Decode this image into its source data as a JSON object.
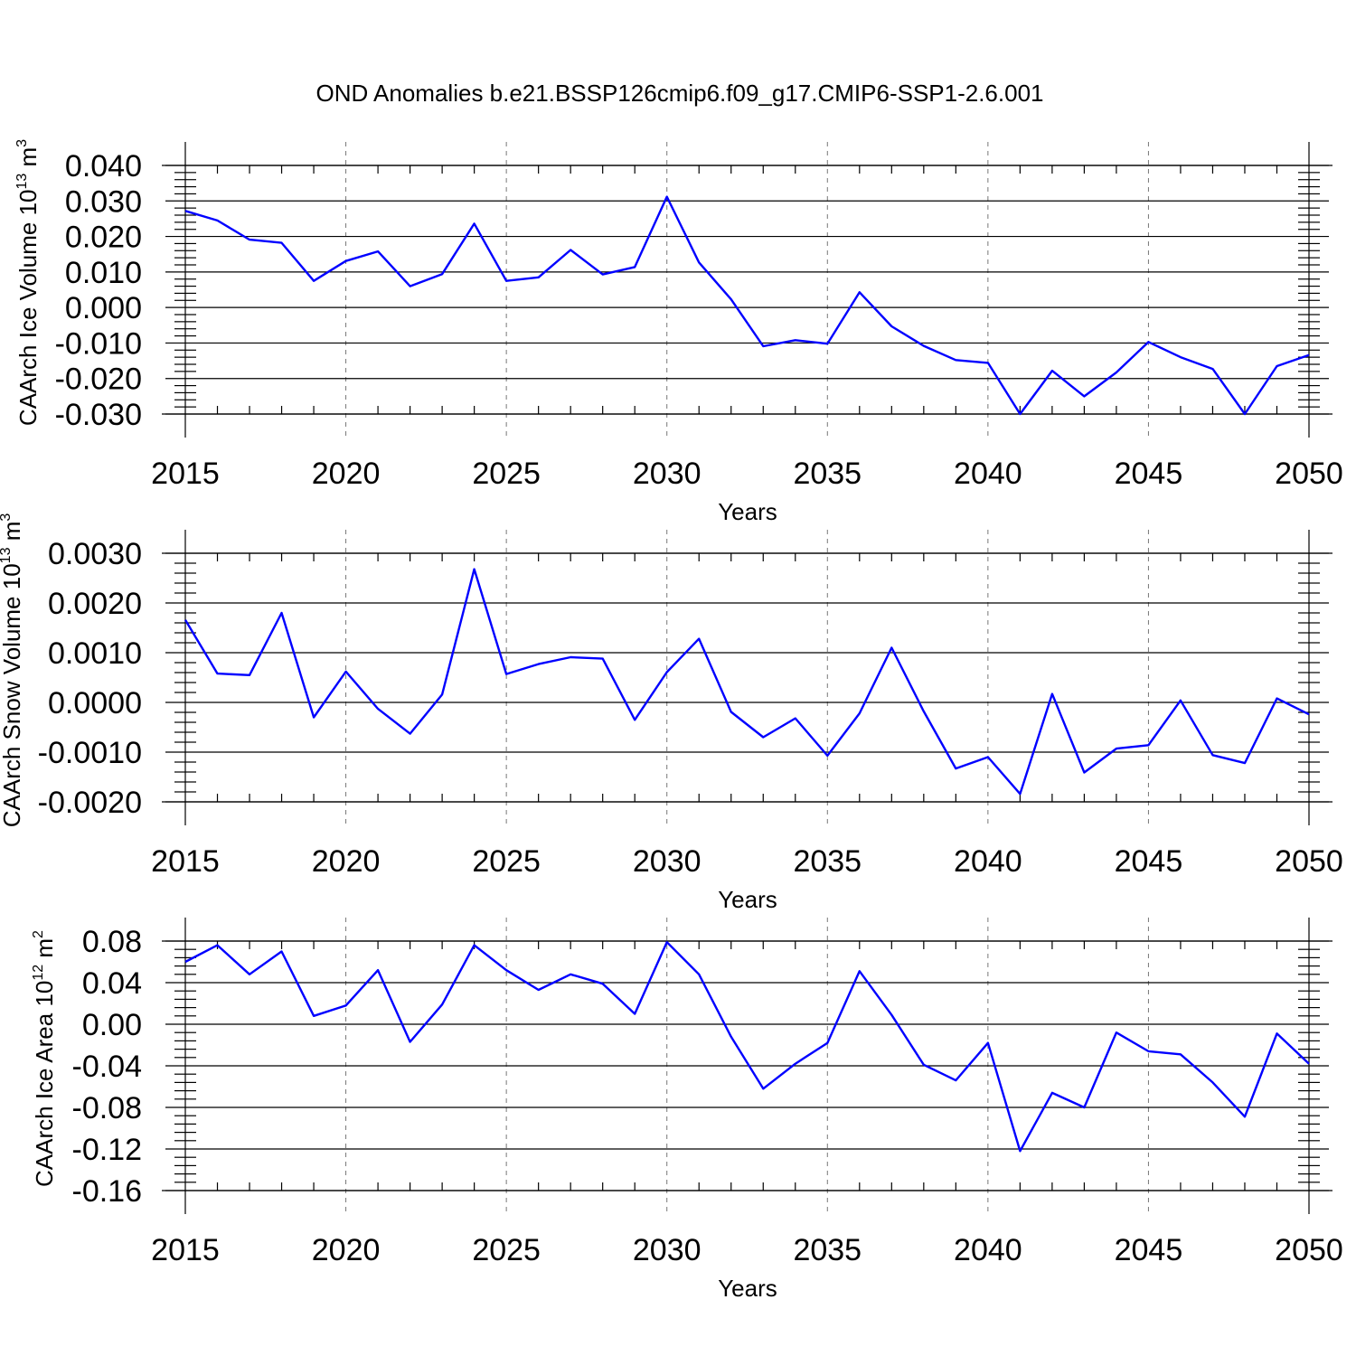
{
  "title": "OND Anomalies b.e21.BSSP126cmip6.f09_g17.CMIP6-SSP1-2.6.001",
  "line_color": "#0000ff",
  "chart_data": [
    {
      "type": "line",
      "ylabel": {
        "text": "CAArch Ice Volume 10",
        "exp": "13",
        "unit": " m",
        "unit_exp": "3"
      },
      "xlabel": "Years",
      "xlim": [
        2015,
        2050
      ],
      "ylim": [
        -0.03,
        0.04
      ],
      "x_ticks": [
        2015,
        2020,
        2025,
        2030,
        2035,
        2040,
        2045,
        2050
      ],
      "x_tick_labels": [
        "2015",
        "2020",
        "2025",
        "2030",
        "2035",
        "2040",
        "2045",
        "2050"
      ],
      "y_ticks": [
        -0.03,
        -0.02,
        -0.01,
        0.0,
        0.01,
        0.02,
        0.03,
        0.04
      ],
      "y_tick_labels": [
        "-0.030",
        "-0.020",
        "-0.010",
        "0.000",
        "0.010",
        "0.020",
        "0.030",
        "0.040"
      ],
      "grid": "vertical dashed at labeled years",
      "x": [
        2015,
        2016,
        2017,
        2018,
        2019,
        2020,
        2021,
        2022,
        2023,
        2024,
        2025,
        2026,
        2027,
        2028,
        2029,
        2030,
        2031,
        2032,
        2033,
        2034,
        2035,
        2036,
        2037,
        2038,
        2039,
        2040,
        2041,
        2042,
        2043,
        2044,
        2045,
        2046,
        2047,
        2048,
        2049,
        2050
      ],
      "values": [
        0.0272,
        0.0245,
        0.0191,
        0.0182,
        0.0075,
        0.0131,
        0.0158,
        0.006,
        0.0094,
        0.0236,
        0.0075,
        0.0085,
        0.0162,
        0.0093,
        0.0114,
        0.0312,
        0.0127,
        0.0023,
        -0.0109,
        -0.0092,
        -0.0102,
        0.0043,
        -0.0053,
        -0.0108,
        -0.0148,
        -0.0156,
        -0.03,
        -0.0178,
        -0.025,
        -0.0183,
        -0.0097,
        -0.014,
        -0.0173,
        -0.03,
        -0.0165,
        -0.0134
      ]
    },
    {
      "type": "line",
      "ylabel": {
        "text": "CAArch Snow Volume 10",
        "exp": "13",
        "unit": " m",
        "unit_exp": "3"
      },
      "xlabel": "Years",
      "xlim": [
        2015,
        2050
      ],
      "ylim": [
        -0.002,
        0.003
      ],
      "x_ticks": [
        2015,
        2020,
        2025,
        2030,
        2035,
        2040,
        2045,
        2050
      ],
      "x_tick_labels": [
        "2015",
        "2020",
        "2025",
        "2030",
        "2035",
        "2040",
        "2045",
        "2050"
      ],
      "y_ticks": [
        -0.002,
        -0.001,
        0.0,
        0.001,
        0.002,
        0.003
      ],
      "y_tick_labels": [
        "-0.0020",
        "-0.0010",
        "0.0000",
        "0.0010",
        "0.0020",
        "0.0030"
      ],
      "grid": "vertical dashed at labeled years",
      "x": [
        2015,
        2016,
        2017,
        2018,
        2019,
        2020,
        2021,
        2022,
        2023,
        2024,
        2025,
        2026,
        2027,
        2028,
        2029,
        2030,
        2031,
        2032,
        2033,
        2034,
        2035,
        2036,
        2037,
        2038,
        2039,
        2040,
        2041,
        2042,
        2043,
        2044,
        2045,
        2046,
        2047,
        2048,
        2049,
        2050
      ],
      "values": [
        0.00166,
        0.00058,
        0.00055,
        0.0018,
        -0.0003,
        0.00062,
        -0.00013,
        -0.00063,
        0.00016,
        0.00268,
        0.00057,
        0.00077,
        0.00091,
        0.00088,
        -0.00035,
        0.00061,
        0.00128,
        -0.00019,
        -0.0007,
        -0.00032,
        -0.00107,
        -0.00022,
        0.0011,
        -0.00018,
        -0.00133,
        -0.0011,
        -0.00184,
        0.00017,
        -0.00141,
        -0.00093,
        -0.00086,
        4e-05,
        -0.00106,
        -0.00122,
        8e-05,
        -0.00024
      ]
    },
    {
      "type": "line",
      "ylabel": {
        "text": "CAArch Ice Area 10",
        "exp": "12",
        "unit": " m",
        "unit_exp": "2"
      },
      "xlabel": "Years",
      "xlim": [
        2015,
        2050
      ],
      "ylim": [
        -0.16,
        0.08
      ],
      "x_ticks": [
        2015,
        2020,
        2025,
        2030,
        2035,
        2040,
        2045,
        2050
      ],
      "x_tick_labels": [
        "2015",
        "2020",
        "2025",
        "2030",
        "2035",
        "2040",
        "2045",
        "2050"
      ],
      "y_ticks": [
        -0.16,
        -0.12,
        -0.08,
        -0.04,
        0.0,
        0.04,
        0.08
      ],
      "y_tick_labels": [
        "-0.16",
        "-0.12",
        "-0.08",
        "-0.04",
        "0.00",
        "0.04",
        "0.08"
      ],
      "grid": "vertical dashed at labeled years",
      "x": [
        2015,
        2016,
        2017,
        2018,
        2019,
        2020,
        2021,
        2022,
        2023,
        2024,
        2025,
        2026,
        2027,
        2028,
        2029,
        2030,
        2031,
        2032,
        2033,
        2034,
        2035,
        2036,
        2037,
        2038,
        2039,
        2040,
        2041,
        2042,
        2043,
        2044,
        2045,
        2046,
        2047,
        2048,
        2049,
        2050
      ],
      "values": [
        0.06,
        0.076,
        0.048,
        0.07,
        0.008,
        0.018,
        0.052,
        -0.017,
        0.019,
        0.076,
        0.052,
        0.033,
        0.048,
        0.039,
        0.01,
        0.079,
        0.048,
        -0.012,
        -0.062,
        -0.038,
        -0.018,
        0.051,
        0.009,
        -0.039,
        -0.054,
        -0.018,
        -0.122,
        -0.066,
        -0.08,
        -0.008,
        -0.026,
        -0.029,
        -0.056,
        -0.089,
        -0.009,
        -0.038
      ]
    }
  ]
}
